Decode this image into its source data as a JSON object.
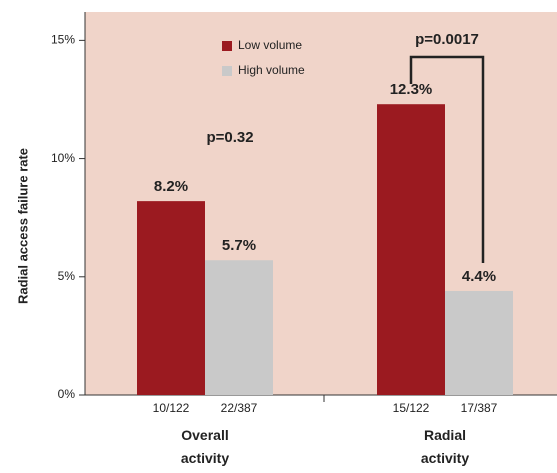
{
  "chart_data": {
    "type": "bar",
    "y_label": "Radial access failure rate",
    "categories": [
      "Overall activity",
      "Radial activity"
    ],
    "series": [
      {
        "name": "Low volume",
        "color": "#9b1a20",
        "values": [
          8.2,
          12.3
        ],
        "value_labels": [
          "8.2%",
          "12.3%"
        ],
        "counts": [
          "10/122",
          "15/122"
        ]
      },
      {
        "name": "High volume",
        "color": "#c9c9c9",
        "values": [
          5.7,
          4.4
        ],
        "value_labels": [
          "5.7%",
          "4.4%"
        ],
        "counts": [
          "22/387",
          "17/387"
        ]
      }
    ],
    "annotations": [
      "p=0.32",
      "p=0.0017"
    ],
    "ylim": [
      0,
      16.2
    ],
    "yticks": [
      {
        "value": 0,
        "label": "0%"
      },
      {
        "value": 5,
        "label": "5%"
      },
      {
        "value": 10,
        "label": "10%"
      },
      {
        "value": 15,
        "label": "15%"
      }
    ],
    "background": "#f0d4c9"
  }
}
